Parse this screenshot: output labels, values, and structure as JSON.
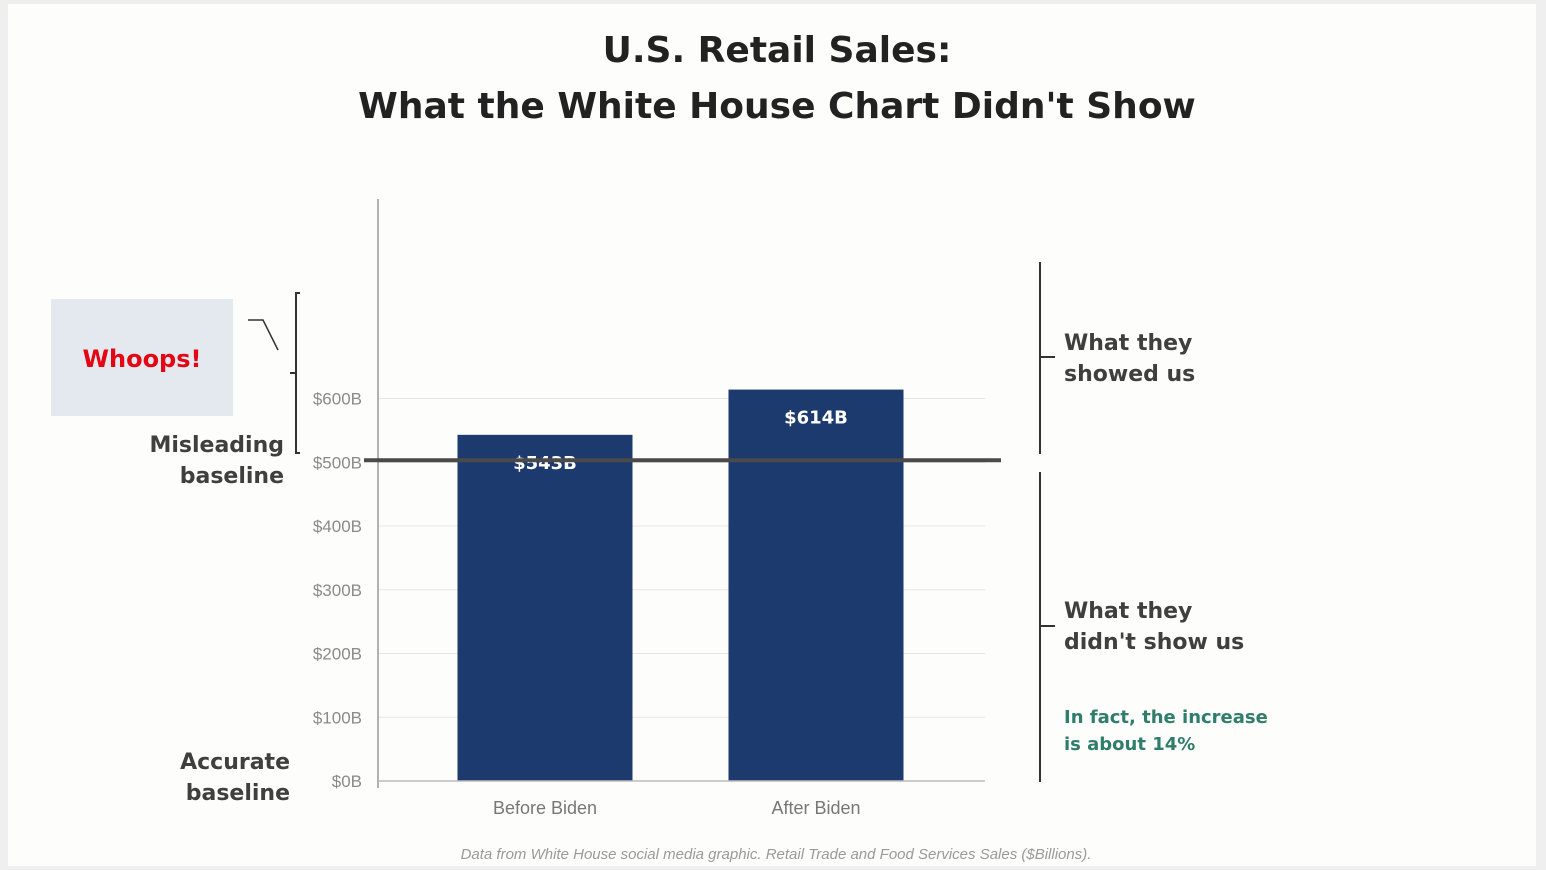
{
  "chart_data": {
    "type": "bar",
    "title": "U.S. Retail Sales:",
    "subtitle": "What the White House Chart Didn't Show",
    "categories": [
      "Before Biden",
      "After Biden"
    ],
    "values": [
      543,
      614
    ],
    "value_labels": [
      "$543B",
      "$614B"
    ],
    "bar_color": "#1c3a6e",
    "ylim": [
      0,
      750
    ],
    "yticks": [
      {
        "value": 0,
        "label": "$0B"
      },
      {
        "value": 100,
        "label": "$100B"
      },
      {
        "value": 200,
        "label": "$200B"
      },
      {
        "value": 300,
        "label": "$300B"
      },
      {
        "value": 400,
        "label": "$400B"
      },
      {
        "value": 500,
        "label": "$500B"
      },
      {
        "value": 600,
        "label": "$600B"
      }
    ],
    "misleading_baseline_value": 500,
    "grid": true
  },
  "annotations": {
    "whoops": "Whoops!",
    "misleading_baseline": [
      "Misleading",
      "baseline"
    ],
    "accurate_baseline": [
      "Accurate",
      "baseline"
    ],
    "showed": [
      "What they",
      "showed us"
    ],
    "didnt_show": [
      "What they",
      "didn't show us"
    ],
    "in_fact": [
      "In fact, the increase",
      "is about 14%"
    ],
    "green_color": "#2f7d6b",
    "whoops_color": "#e30613"
  },
  "footnote": "Data from White House social media graphic. Retail Trade and Food Services Sales ($Billions)."
}
